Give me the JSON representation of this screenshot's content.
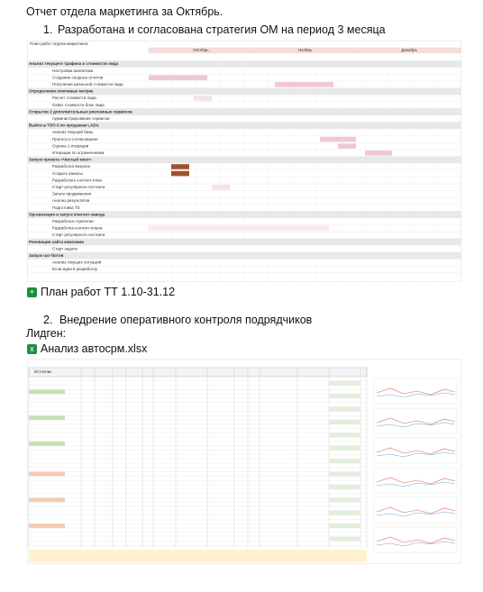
{
  "header": {
    "title": "Отчет отдела маркетинга за Октябрь."
  },
  "items": [
    {
      "number": "1.",
      "text": "Разработана и согласована стратегия ОМ на период 3 месяца"
    },
    {
      "number": "2.",
      "text": "Внедрение оперативного контроля подрядчиков"
    }
  ],
  "gantt": {
    "heading": "План работ отдела маркетинга",
    "months": [
      "Октябрь",
      "Ноябрь",
      "Декабрь"
    ],
    "sections": [
      {
        "title": "Анализ текущего трафика и стоимости лида",
        "rows": [
          "Настройка аналитики",
          "Создание сводных отчетов",
          "Получение реальной стоимости лида"
        ]
      },
      {
        "title": "Определение ключевых метрик",
        "rows": [
          "Расчет стоимости лида",
          "Охват стоимости блок лида"
        ]
      },
      {
        "title": "Открытие 2 дополнительных рекламных сервисов",
        "rows": [
          "Администрирование сервисов"
        ]
      },
      {
        "title": "Выйти в ТОП-3 по продажам LADA",
        "rows": [
          "Анализ текущей базы",
          "Прогноз и согласование",
          "Оценка 1 итерации",
          "Итерации по ограничениям"
        ]
      },
      {
        "title": "Запуск проекта «Чистый мент»",
        "rows": [
          "Разработка визуала",
          "Создать каналы",
          "Разработать контент-план",
          "Старт регулярного постинга",
          "Запуск продвижения",
          "Анализ результатов",
          "Подготовка ТЗ"
        ]
      },
      {
        "title": "Организация и запуск контент-завода",
        "rows": [
          "Разработка стратегии",
          "Разработка контент-плана",
          "Старт регулярного постинга"
        ]
      },
      {
        "title": "Реновация сайта компании",
        "rows": [
          "Старт задачи"
        ]
      },
      {
        "title": "Запуск чат-ботов",
        "rows": [
          "Анализ текущих ситуаций",
          "Если идеи в разработку"
        ]
      }
    ]
  },
  "links": {
    "plan": "План работ  ТТ 1.10-31.12",
    "leadgen_label": "Лидген:",
    "sheet": "Анализ автосрм.xlsx"
  },
  "sheet": {
    "first_header": "Источник"
  }
}
